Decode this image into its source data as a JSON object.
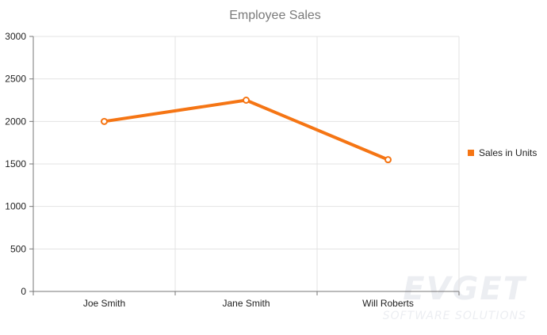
{
  "colors": {
    "series": "#f57514",
    "grid": "#e3e3e3",
    "axis": "#777777",
    "title": "#7a7a7a",
    "watermark": "#eceef2"
  },
  "watermark": {
    "main": "EVGET",
    "sub": "SOFTWARE SOLUTIONS"
  },
  "chart_data": {
    "type": "line",
    "title": "Employee Sales",
    "categories": [
      "Joe Smith",
      "Jane Smith",
      "Will Roberts"
    ],
    "series": [
      {
        "name": "Sales in Units",
        "values": [
          2000,
          2250,
          1550
        ]
      }
    ],
    "ylim": [
      0,
      3000
    ],
    "yticks": [
      0,
      500,
      1000,
      1500,
      2000,
      2500,
      3000
    ],
    "grid": true,
    "legend_position": "right",
    "xlabel": "",
    "ylabel": ""
  }
}
